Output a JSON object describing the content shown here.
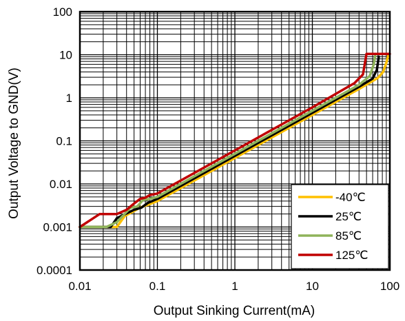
{
  "chart_data": {
    "type": "line",
    "title": "",
    "xlabel": "Output Sinking Current(mA)",
    "ylabel": "Output Voltage to GND(V)",
    "xscale": "log",
    "yscale": "log",
    "xlim": [
      0.01,
      100
    ],
    "ylim": [
      0.0001,
      100
    ],
    "grid": true,
    "legend_position": "bottom-right",
    "x_ticks": [
      "0.01",
      "0.1",
      "1",
      "10",
      "100"
    ],
    "y_ticks": [
      "0.0001",
      "0.001",
      "0.01",
      "0.1",
      "1",
      "10",
      "100"
    ],
    "series": [
      {
        "name": "-40℃",
        "color": "#FFC000",
        "x": [
          0.01,
          0.03,
          0.038,
          0.047,
          0.055,
          0.065,
          0.08,
          0.1,
          1,
          10,
          40,
          70,
          82,
          90,
          95
        ],
        "y": [
          0.001,
          0.001,
          0.0018,
          0.0022,
          0.0026,
          0.003,
          0.0034,
          0.004,
          0.04,
          0.4,
          1.6,
          2.9,
          4.0,
          6.5,
          9.5
        ]
      },
      {
        "name": "25℃",
        "color": "#000000",
        "x": [
          0.01,
          0.025,
          0.03,
          0.05,
          0.062,
          0.075,
          0.1,
          1,
          10,
          40,
          60,
          68,
          72
        ],
        "y": [
          0.001,
          0.001,
          0.0016,
          0.0025,
          0.0028,
          0.0036,
          0.0045,
          0.045,
          0.45,
          1.8,
          2.8,
          4.5,
          9.0
        ]
      },
      {
        "name": "85℃",
        "color": "#8FB35A",
        "x": [
          0.01,
          0.022,
          0.03,
          0.045,
          0.055,
          0.065,
          0.08,
          0.1,
          1,
          10,
          40,
          55,
          62,
          65
        ],
        "y": [
          0.001,
          0.001,
          0.0013,
          0.0028,
          0.003,
          0.0042,
          0.0045,
          0.005,
          0.05,
          0.5,
          2.0,
          3.2,
          6.0,
          10.0
        ]
      },
      {
        "name": "125℃",
        "color": "#C00000",
        "x": [
          0.01,
          0.018,
          0.03,
          0.04,
          0.05,
          0.06,
          0.07,
          0.08,
          0.1,
          1,
          10,
          35,
          45,
          50,
          100
        ],
        "y": [
          0.001,
          0.002,
          0.002,
          0.0025,
          0.0035,
          0.0045,
          0.0048,
          0.0055,
          0.006,
          0.06,
          0.6,
          2.2,
          3.5,
          10.5,
          10.5
        ]
      }
    ]
  }
}
